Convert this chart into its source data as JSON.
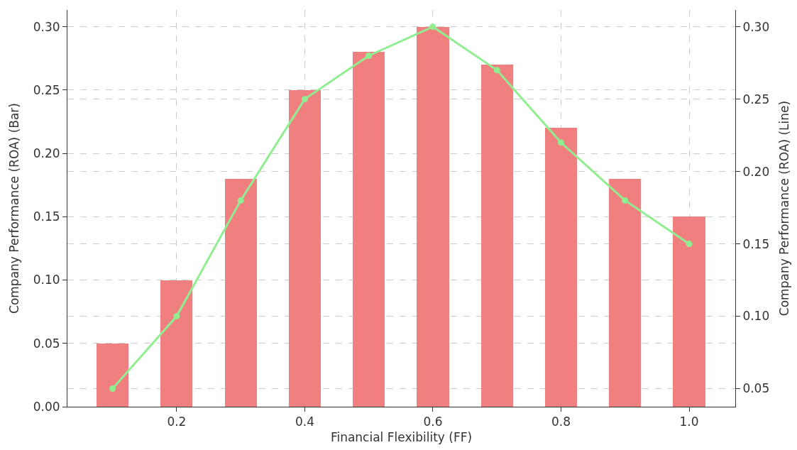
{
  "chart_data": {
    "type": "bar",
    "xlabel": "Financial Flexibility (FF)",
    "ylabel": "Company Performance (ROA) (Bar)",
    "y2label": "Company Performance (ROA) (Line)",
    "x": [
      0.1,
      0.2,
      0.3,
      0.4,
      0.5,
      0.6,
      0.7,
      0.8,
      0.9,
      1.0
    ],
    "series": [
      {
        "color": "#f08080",
        "values": [
          0.05,
          0.1,
          0.18,
          0.25,
          0.28,
          0.3,
          0.27,
          0.22,
          0.18,
          0.15
        ]
      },
      {
        "type": "line",
        "axis": "y2",
        "color": "#90ee90",
        "marker": "circle",
        "line_style": "solid",
        "values": [
          0.05,
          0.1,
          0.18,
          0.25,
          0.28,
          0.3,
          0.27,
          0.22,
          0.18,
          0.15
        ]
      }
    ],
    "xlim": [
      0.0295,
      1.072
    ],
    "xticks": [
      {
        "value": 0.2,
        "label": "0.2"
      },
      {
        "value": 0.4,
        "label": "0.4"
      },
      {
        "value": 0.6,
        "label": "0.6"
      },
      {
        "value": 0.8,
        "label": "0.8"
      },
      {
        "value": 1.0,
        "label": "1.0"
      }
    ],
    "ylim": [
      0,
      0.3132
    ],
    "yticks": [
      {
        "value": 0,
        "label": "0.00"
      },
      {
        "value": 0.05,
        "label": "0.05"
      },
      {
        "value": 0.1,
        "label": "0.10"
      },
      {
        "value": 0.15,
        "label": "0.15"
      },
      {
        "value": 0.2,
        "label": "0.20"
      },
      {
        "value": 0.25,
        "label": "0.25"
      },
      {
        "value": 0.3,
        "label": "0.30"
      }
    ],
    "y2lim": [
      0.0375,
      0.3116
    ],
    "y2ticks": [
      {
        "value": 0.05,
        "label": "0.05"
      },
      {
        "value": 0.1,
        "label": "0.10"
      },
      {
        "value": 0.15,
        "label": "0.15"
      },
      {
        "value": 0.2,
        "label": "0.20"
      },
      {
        "value": 0.25,
        "label": "0.25"
      },
      {
        "value": 0.3,
        "label": "0.30"
      }
    ],
    "grid": true
  }
}
